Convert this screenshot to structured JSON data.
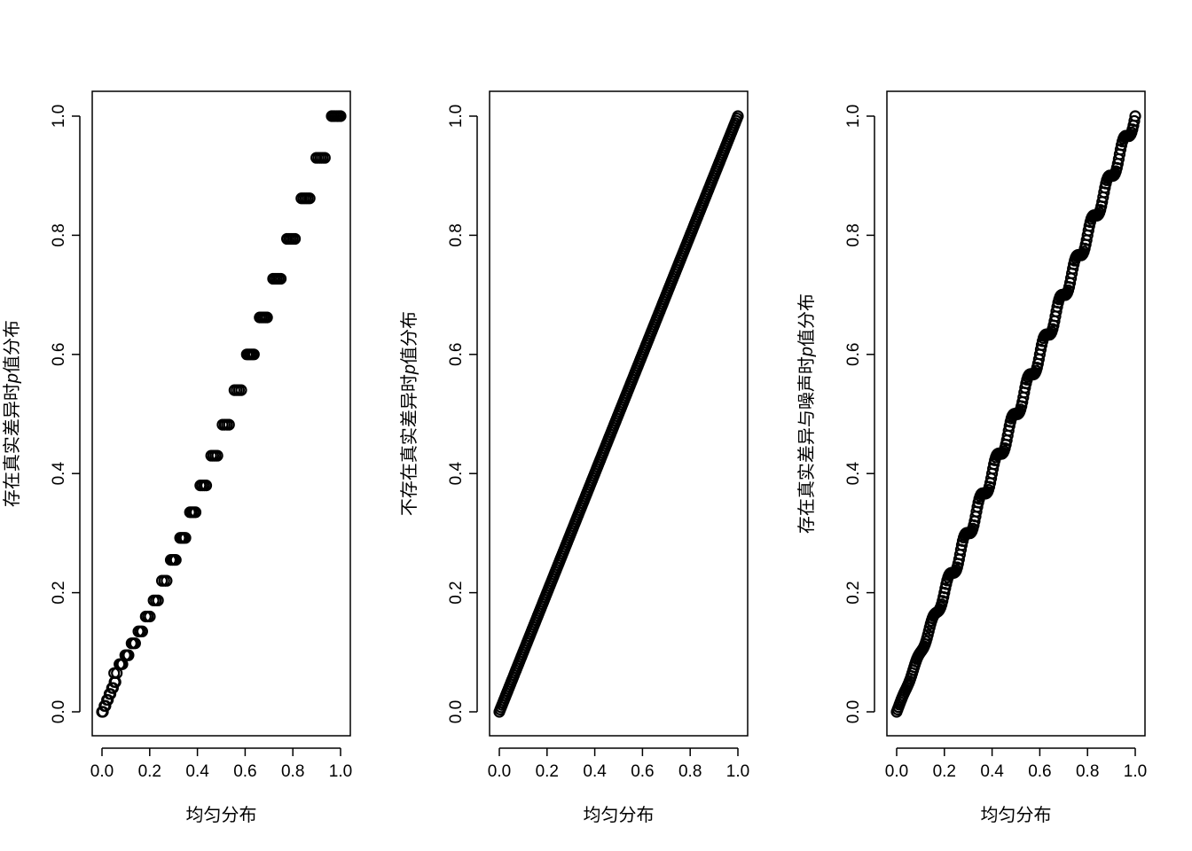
{
  "chart_data": [
    {
      "type": "scatter",
      "xlabel": "均匀分布",
      "ylabel": "存在真实差异时p值分布",
      "ylabel_parts": [
        "存在真实差异时",
        "p",
        "值分布"
      ],
      "xlim": [
        0,
        1
      ],
      "ylim": [
        0,
        1
      ],
      "xticks": [
        "0.0",
        "0.2",
        "0.4",
        "0.6",
        "0.8",
        "1.0"
      ],
      "yticks": [
        "0.0",
        "0.2",
        "0.4",
        "0.6",
        "0.8",
        "1.0"
      ],
      "pattern": "step",
      "levels": [
        0.0,
        0.01,
        0.02,
        0.03,
        0.04,
        0.05,
        0.065,
        0.08,
        0.095,
        0.115,
        0.135,
        0.16,
        0.187,
        0.22,
        0.255,
        0.292,
        0.335,
        0.38,
        0.43,
        0.482,
        0.54,
        0.6,
        0.662,
        0.727,
        0.794,
        0.862,
        0.93,
        1.0
      ],
      "grid": false,
      "legend": "none"
    },
    {
      "type": "scatter",
      "xlabel": "均匀分布",
      "ylabel": "不存在真实差异时p值分布",
      "ylabel_parts": [
        "不存在真实差异时",
        "p",
        "值分布"
      ],
      "xlim": [
        0,
        1
      ],
      "ylim": [
        0,
        1
      ],
      "xticks": [
        "0.0",
        "0.2",
        "0.4",
        "0.6",
        "0.8",
        "1.0"
      ],
      "yticks": [
        "0.0",
        "0.2",
        "0.4",
        "0.6",
        "0.8",
        "1.0"
      ],
      "pattern": "linear",
      "x": [
        0,
        0.1,
        0.2,
        0.3,
        0.4,
        0.5,
        0.6,
        0.7,
        0.8,
        0.9,
        1.0
      ],
      "y": [
        0,
        0.1,
        0.2,
        0.3,
        0.4,
        0.5,
        0.6,
        0.7,
        0.8,
        0.9,
        1.0
      ],
      "grid": false,
      "legend": "none"
    },
    {
      "type": "scatter",
      "xlabel": "均匀分布",
      "ylabel": "存在真实差异与噪声时p值分布",
      "ylabel_parts": [
        "存在真实差异与噪声时",
        "p",
        "值分布"
      ],
      "xlim": [
        0,
        1
      ],
      "ylim": [
        0,
        1
      ],
      "xticks": [
        "0.0",
        "0.2",
        "0.4",
        "0.6",
        "0.8",
        "1.0"
      ],
      "yticks": [
        "0.0",
        "0.2",
        "0.4",
        "0.6",
        "0.8",
        "1.0"
      ],
      "pattern": "wavy",
      "x": [
        0,
        0.1,
        0.2,
        0.3,
        0.4,
        0.5,
        0.6,
        0.7,
        0.8,
        0.9,
        1.0
      ],
      "y": [
        0,
        0.1,
        0.2,
        0.3,
        0.4,
        0.5,
        0.6,
        0.7,
        0.8,
        0.9,
        1.0
      ],
      "grid": false,
      "legend": "none"
    }
  ]
}
